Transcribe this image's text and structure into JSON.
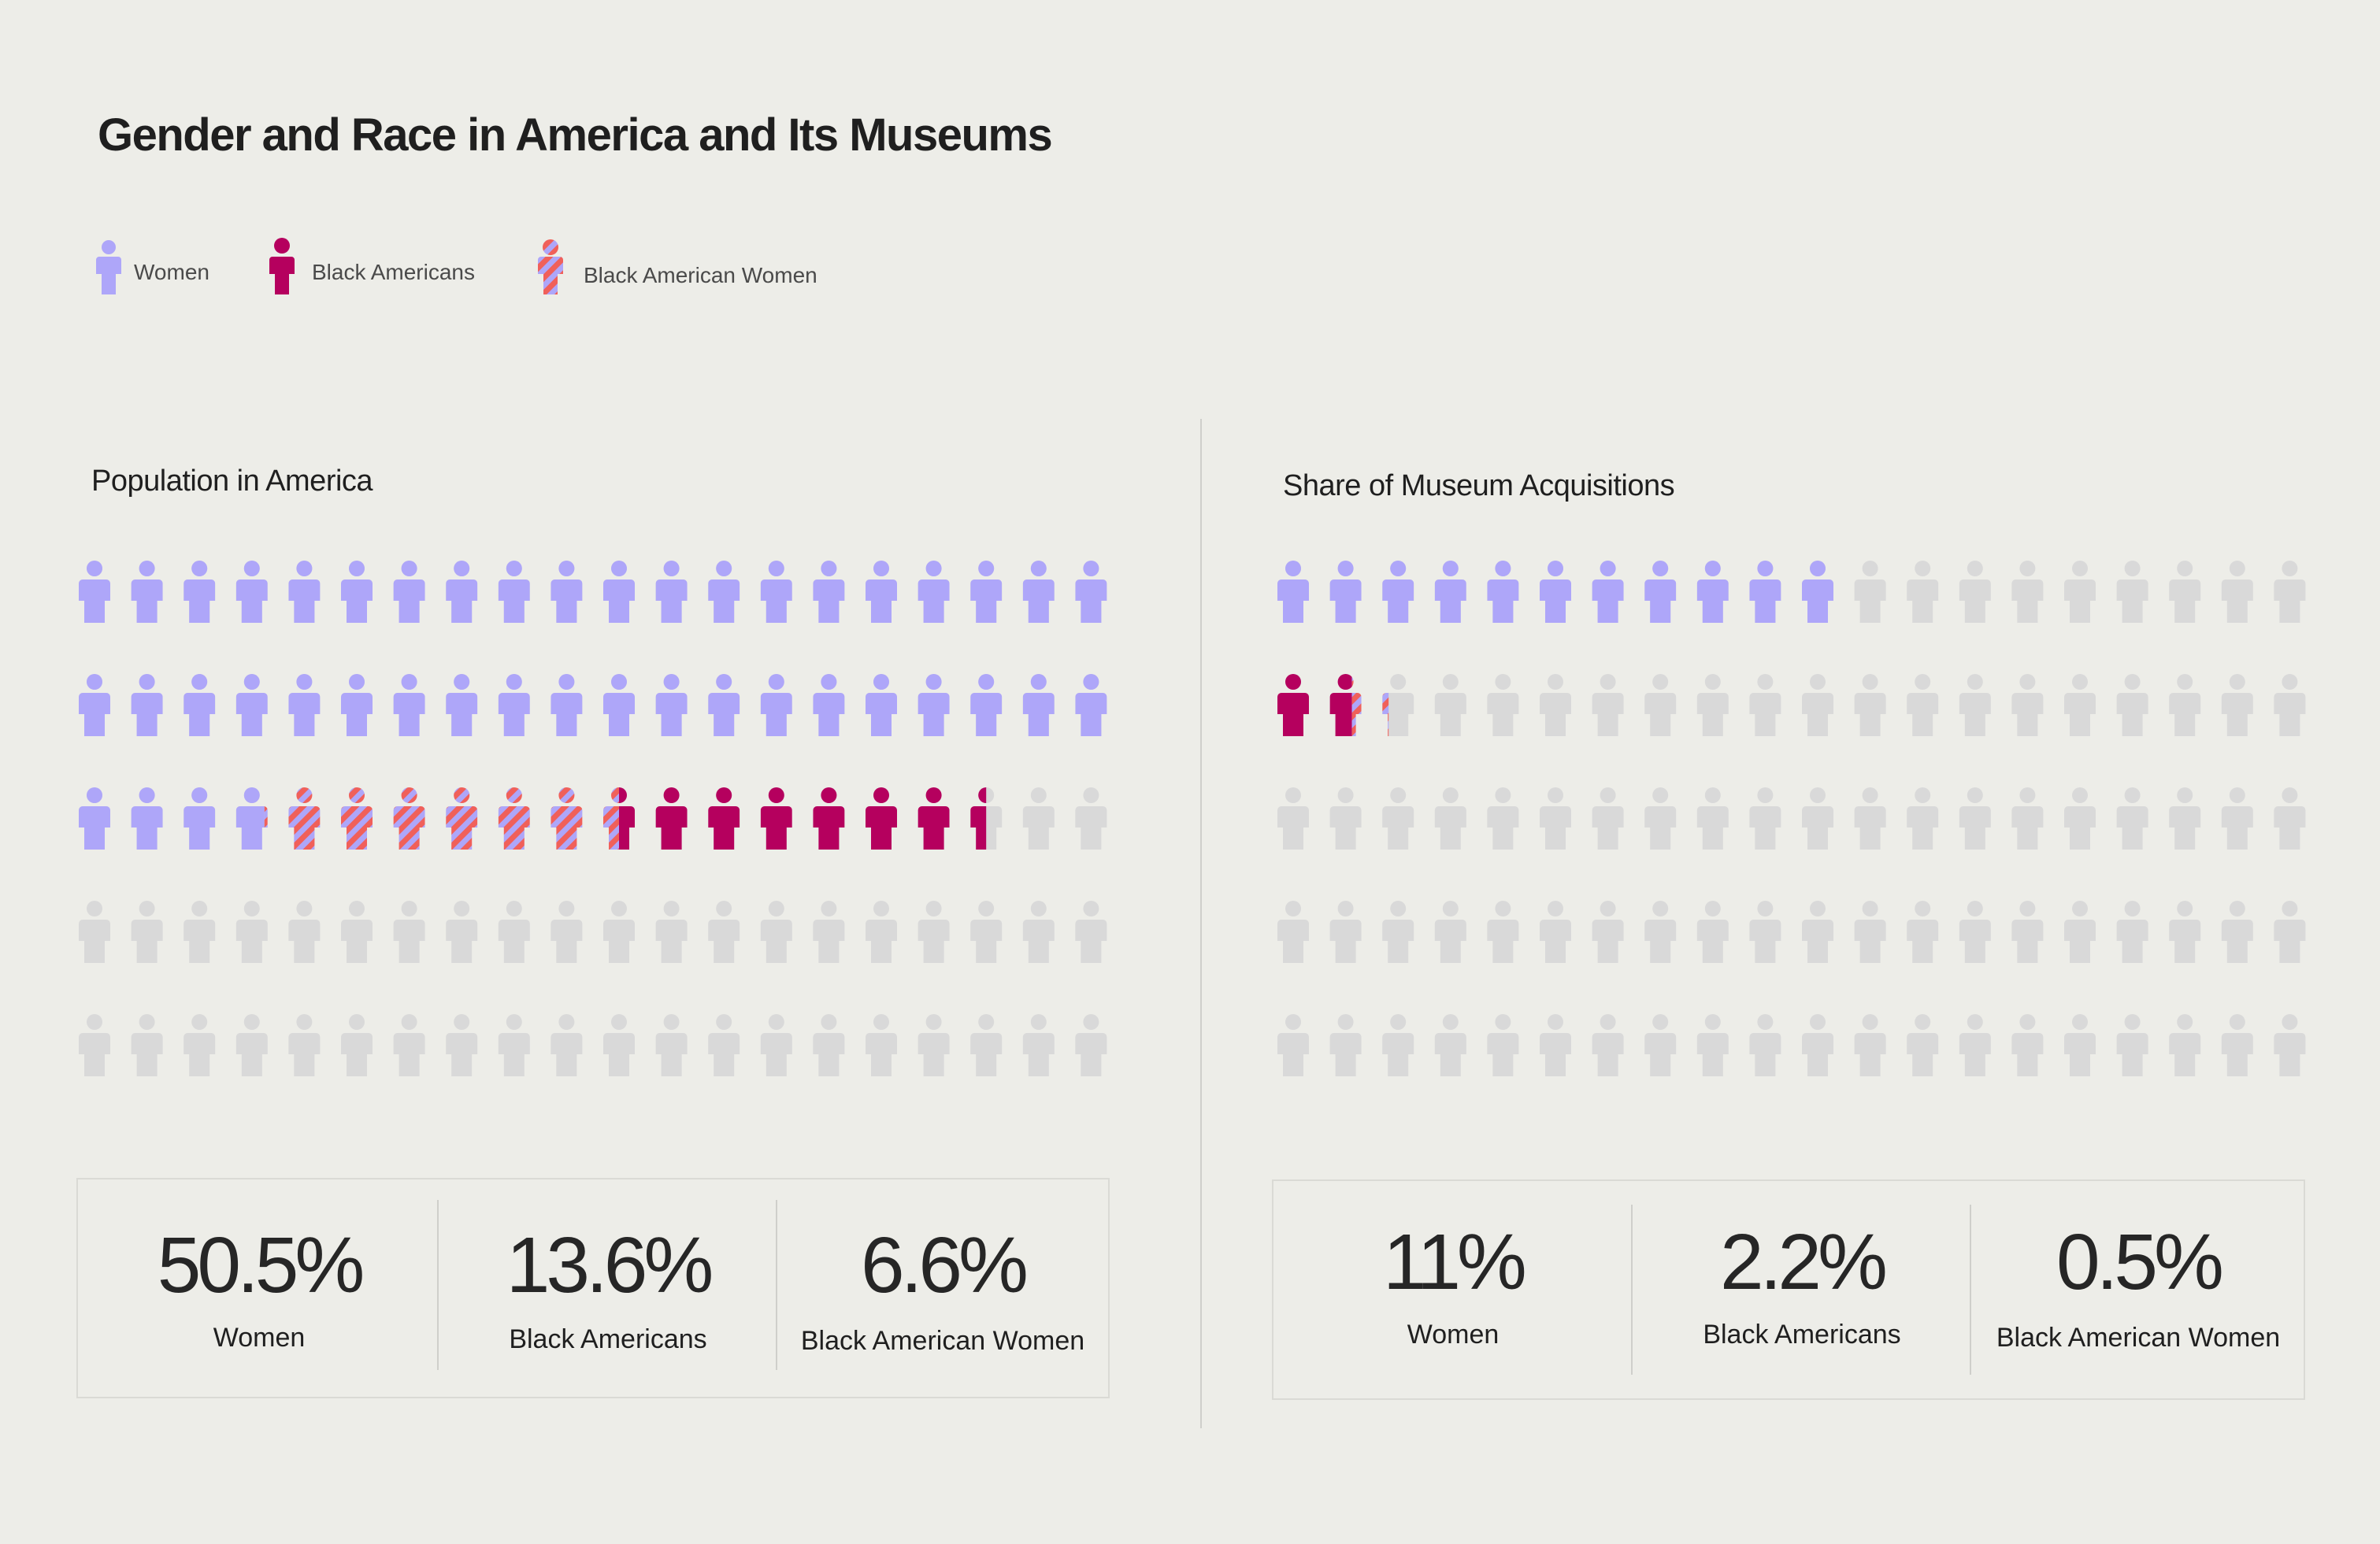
{
  "title": "Gender and Race in America and Its Museums",
  "legend": [
    {
      "label": "Women",
      "kind": "women"
    },
    {
      "label": "Black Americans",
      "kind": "black"
    },
    {
      "label": "Black American Women",
      "kind": "bawomen"
    }
  ],
  "colors": {
    "women": "#aea6f9",
    "black": "#b5005e",
    "stripe_a": "#f0605a",
    "stripe_b": "#aea6f9",
    "empty": "#d9d9d9",
    "background": "#edede8"
  },
  "chart_data": [
    {
      "type": "pictogram",
      "title": "Population in America",
      "grid": {
        "columns": 20,
        "rows": 5,
        "unit_percent": 1
      },
      "series": [
        {
          "name": "Women",
          "value": 50.5
        },
        {
          "name": "Black Americans",
          "value": 13.6
        },
        {
          "name": "Black American Women",
          "value": 6.6
        }
      ],
      "stats": [
        {
          "value": "50.5%",
          "label": "Women"
        },
        {
          "value": "13.6%",
          "label": "Black Americans"
        },
        {
          "value": "6.6%",
          "label": "Black American Women"
        }
      ]
    },
    {
      "type": "pictogram",
      "title": "Share of Museum Acquisitions",
      "grid": {
        "columns": 20,
        "rows": 5,
        "unit_percent": 1
      },
      "series": [
        {
          "name": "Women",
          "value": 11
        },
        {
          "name": "Black Americans",
          "value": 2.2
        },
        {
          "name": "Black American Women",
          "value": 0.5
        }
      ],
      "stats": [
        {
          "value": "11%",
          "label": "Women"
        },
        {
          "value": "2.2%",
          "label": "Black Americans"
        },
        {
          "value": "0.5%",
          "label": "Black American Women"
        }
      ]
    }
  ]
}
